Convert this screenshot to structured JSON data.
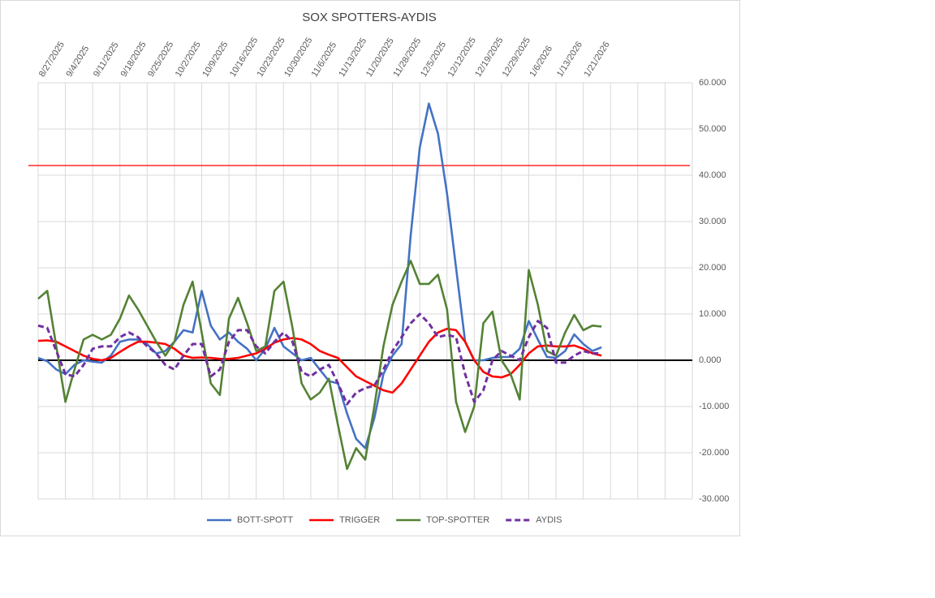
{
  "chart_data": {
    "type": "line",
    "title": "SOX SPOTTERS-AYDIS",
    "categories": [
      "8/27/2025",
      null,
      null,
      "9/4/2025",
      null,
      null,
      "9/11/2025",
      null,
      null,
      "9/18/2025",
      null,
      null,
      "9/25/2025",
      null,
      null,
      "10/2/2025",
      null,
      null,
      "10/9/2025",
      null,
      null,
      "10/16/2025",
      null,
      null,
      "10/23/2025",
      null,
      null,
      "10/30/2025",
      null,
      null,
      "11/6/2025",
      null,
      null,
      "11/13/2025",
      null,
      null,
      "11/20/2025",
      null,
      null,
      "11/28/2025",
      null,
      null,
      "12/5/2025",
      null,
      null,
      "12/12/2025",
      null,
      null,
      "12/19/2025",
      null,
      null,
      "12/29/2025",
      null,
      null,
      "1/6/2026",
      null,
      null,
      "1/13/2026",
      null,
      null,
      "1/21/2026",
      null,
      null,
      null,
      null,
      null,
      null,
      null,
      null,
      null,
      null,
      null,
      null
    ],
    "series": [
      {
        "name": "BOTT-SPOTT",
        "color": "#4472c4",
        "values": [
          0.5,
          -0.2,
          -2,
          -3,
          -1,
          0,
          -0.3,
          -0.5,
          1,
          4,
          4.5,
          4.5,
          3.5,
          1.5,
          2,
          4,
          6.5,
          6,
          15,
          7.5,
          4.5,
          6,
          4,
          2.5,
          0,
          2.5,
          7,
          3,
          1.5,
          0,
          0.5,
          -2,
          -4.5,
          -5,
          -11.5,
          -17,
          -19,
          -12.5,
          -3,
          1,
          3.5,
          27,
          46,
          55.5,
          49,
          36,
          20,
          4,
          0,
          0,
          0.5,
          0.7,
          0.7,
          2.5,
          8.5,
          4.5,
          0.7,
          0.5,
          2,
          5.6,
          3.5,
          2,
          2.8,
          null,
          null,
          null,
          null,
          null,
          null,
          null,
          null,
          null,
          null
        ]
      },
      {
        "name": "TRIGGER",
        "color": "#ff0000",
        "values": [
          4.2,
          4.3,
          4,
          3,
          2,
          1,
          0.3,
          0,
          0.5,
          1.8,
          3,
          4,
          4,
          3.8,
          3.5,
          2.5,
          1,
          0.5,
          0.6,
          0.5,
          0.3,
          0.3,
          0.5,
          1,
          1.5,
          2.5,
          3.8,
          4.5,
          4.8,
          4.5,
          3.5,
          2,
          1.2,
          0.5,
          -1.5,
          -3.5,
          -4.5,
          -5.5,
          -6.5,
          -7,
          -5,
          -2,
          1,
          4,
          6,
          6.8,
          6.5,
          4,
          0,
          -2.5,
          -3.5,
          -3.7,
          -3,
          -1,
          1.5,
          3,
          3.2,
          3,
          3,
          3.2,
          2.5,
          1.5,
          1,
          null,
          null,
          null,
          null,
          null,
          null,
          null,
          null,
          null,
          null
        ]
      },
      {
        "name": "TOP-SPOTTER",
        "color": "#548235",
        "values": [
          13.3,
          15,
          3,
          -9,
          -2,
          4.5,
          5.5,
          4.5,
          5.5,
          9,
          14,
          11,
          7.5,
          4,
          1,
          4,
          12,
          17,
          6,
          -5,
          -7.5,
          9,
          13.5,
          8,
          2,
          3,
          15,
          17,
          7,
          -5,
          -8.5,
          -7,
          -4,
          -14,
          -23.5,
          -19,
          -21.5,
          -10,
          3,
          12,
          17,
          21.5,
          16.5,
          16.5,
          18.5,
          11,
          -9,
          -15.5,
          -10,
          8,
          10.5,
          0,
          -3,
          -8.5,
          19.5,
          12,
          2,
          1,
          6,
          9.8,
          6.5,
          7.5,
          7.3,
          null,
          null,
          null,
          null,
          null,
          null,
          null,
          null,
          null,
          null
        ]
      },
      {
        "name": "AYDIS",
        "color": "#7030a0",
        "dash": true,
        "values": [
          7.5,
          7,
          2,
          -3,
          -3.5,
          -1,
          2.5,
          3,
          3,
          5,
          6,
          5,
          3,
          1.5,
          -1,
          -2,
          1,
          3.5,
          3.5,
          -3.5,
          -2,
          4,
          6.5,
          6.5,
          3,
          1.5,
          4,
          6,
          4,
          -2.5,
          -3.5,
          -2,
          -1,
          -5,
          -9.5,
          -7,
          -6,
          -5.5,
          -2,
          2,
          5,
          8,
          10,
          8,
          5,
          5.5,
          5,
          -3,
          -9,
          -6.5,
          0,
          2,
          1,
          0,
          5,
          8.5,
          7,
          -0.5,
          -0.5,
          1,
          2,
          1.5,
          1.5,
          null,
          null,
          null,
          null,
          null,
          null,
          null,
          null,
          null,
          null
        ]
      }
    ],
    "hline": {
      "value": 42.1,
      "color": "#ff0000"
    },
    "ylim": [
      -30,
      60
    ],
    "yticks": [
      {
        "value": -30,
        "label": "-30.000"
      },
      {
        "value": -20,
        "label": "-20.000"
      },
      {
        "value": -10,
        "label": "-10.000"
      },
      {
        "value": 0,
        "label": "0.000"
      },
      {
        "value": 10,
        "label": "10.000"
      },
      {
        "value": 20,
        "label": "20.000"
      },
      {
        "value": 30,
        "label": "30.000"
      },
      {
        "value": 40,
        "label": "40.000"
      },
      {
        "value": 50,
        "label": "50.000"
      },
      {
        "value": 60,
        "label": "60.000"
      }
    ],
    "grid": true,
    "legend": "bottom"
  }
}
